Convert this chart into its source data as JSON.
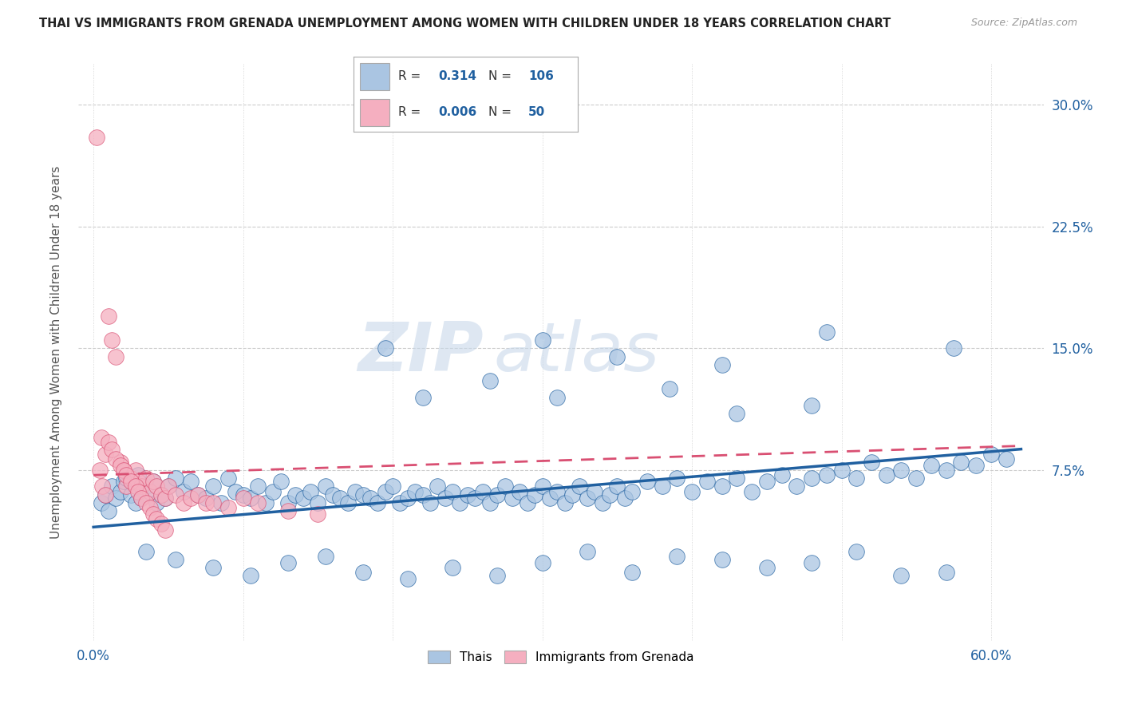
{
  "title": "THAI VS IMMIGRANTS FROM GRENADA UNEMPLOYMENT AMONG WOMEN WITH CHILDREN UNDER 18 YEARS CORRELATION CHART",
  "source": "Source: ZipAtlas.com",
  "xlabel_ticks_show": [
    "0.0%",
    "60.0%"
  ],
  "xlabel_vals_show": [
    0.0,
    0.6
  ],
  "xlabel_tick_positions": [
    0.0,
    0.1,
    0.2,
    0.3,
    0.4,
    0.5,
    0.6
  ],
  "ylabel": "Unemployment Among Women with Children Under 18 years",
  "ylabel_ticks": [
    "7.5%",
    "15.0%",
    "22.5%",
    "30.0%"
  ],
  "ylabel_vals": [
    0.075,
    0.15,
    0.225,
    0.3
  ],
  "ylim": [
    -0.03,
    0.325
  ],
  "xlim": [
    -0.01,
    0.635
  ],
  "legend_label1": "Thais",
  "legend_label2": "Immigrants from Grenada",
  "r1": "0.314",
  "n1": "106",
  "r2": "0.006",
  "n2": "50",
  "color_thai": "#aac5e2",
  "color_grenada": "#f5afc0",
  "color_thai_line": "#2060a0",
  "color_grenada_line": "#d94f72",
  "background_color": "#ffffff",
  "watermark_zip": "ZIP",
  "watermark_atlas": "atlas",
  "thai_x": [
    0.005,
    0.008,
    0.01,
    0.012,
    0.015,
    0.018,
    0.02,
    0.022,
    0.025,
    0.028,
    0.03,
    0.032,
    0.035,
    0.038,
    0.04,
    0.042,
    0.045,
    0.048,
    0.05,
    0.055,
    0.06,
    0.065,
    0.07,
    0.075,
    0.08,
    0.085,
    0.09,
    0.095,
    0.1,
    0.105,
    0.11,
    0.115,
    0.12,
    0.125,
    0.13,
    0.135,
    0.14,
    0.145,
    0.15,
    0.155,
    0.16,
    0.165,
    0.17,
    0.175,
    0.18,
    0.185,
    0.19,
    0.195,
    0.2,
    0.205,
    0.21,
    0.215,
    0.22,
    0.225,
    0.23,
    0.235,
    0.24,
    0.245,
    0.25,
    0.255,
    0.26,
    0.265,
    0.27,
    0.275,
    0.28,
    0.285,
    0.29,
    0.295,
    0.3,
    0.305,
    0.31,
    0.315,
    0.32,
    0.325,
    0.33,
    0.335,
    0.34,
    0.345,
    0.35,
    0.355,
    0.36,
    0.37,
    0.38,
    0.39,
    0.4,
    0.41,
    0.42,
    0.43,
    0.44,
    0.45,
    0.46,
    0.47,
    0.48,
    0.49,
    0.5,
    0.51,
    0.52,
    0.53,
    0.54,
    0.55,
    0.56,
    0.57,
    0.58,
    0.59,
    0.6,
    0.61
  ],
  "thai_y": [
    0.055,
    0.06,
    0.05,
    0.065,
    0.058,
    0.062,
    0.068,
    0.07,
    0.06,
    0.055,
    0.072,
    0.058,
    0.065,
    0.062,
    0.068,
    0.055,
    0.06,
    0.058,
    0.065,
    0.07,
    0.062,
    0.068,
    0.06,
    0.058,
    0.065,
    0.055,
    0.07,
    0.062,
    0.06,
    0.058,
    0.065,
    0.055,
    0.062,
    0.068,
    0.055,
    0.06,
    0.058,
    0.062,
    0.055,
    0.065,
    0.06,
    0.058,
    0.055,
    0.062,
    0.06,
    0.058,
    0.055,
    0.062,
    0.065,
    0.055,
    0.058,
    0.062,
    0.06,
    0.055,
    0.065,
    0.058,
    0.062,
    0.055,
    0.06,
    0.058,
    0.062,
    0.055,
    0.06,
    0.065,
    0.058,
    0.062,
    0.055,
    0.06,
    0.065,
    0.058,
    0.062,
    0.055,
    0.06,
    0.065,
    0.058,
    0.062,
    0.055,
    0.06,
    0.065,
    0.058,
    0.062,
    0.068,
    0.065,
    0.07,
    0.062,
    0.068,
    0.065,
    0.07,
    0.062,
    0.068,
    0.072,
    0.065,
    0.07,
    0.072,
    0.075,
    0.07,
    0.08,
    0.072,
    0.075,
    0.07,
    0.078,
    0.075,
    0.08,
    0.078,
    0.085,
    0.082
  ],
  "thai_y_high": [
    0.15,
    0.155,
    0.145,
    0.14,
    0.16,
    0.15,
    0.12,
    0.125,
    0.11,
    0.115,
    0.12,
    0.13
  ],
  "thai_x_high": [
    0.195,
    0.3,
    0.35,
    0.42,
    0.49,
    0.575,
    0.31,
    0.385,
    0.43,
    0.48,
    0.22,
    0.265
  ],
  "thai_y_low": [
    0.025,
    0.02,
    0.015,
    0.01,
    0.018,
    0.022,
    0.012,
    0.008,
    0.015,
    0.01,
    0.018,
    0.025,
    0.012,
    0.022,
    0.02,
    0.015,
    0.018,
    0.025,
    0.01,
    0.012
  ],
  "thai_x_low": [
    0.035,
    0.055,
    0.08,
    0.105,
    0.13,
    0.155,
    0.18,
    0.21,
    0.24,
    0.27,
    0.3,
    0.33,
    0.36,
    0.39,
    0.42,
    0.45,
    0.48,
    0.51,
    0.54,
    0.57
  ],
  "grenada_x": [
    0.002,
    0.004,
    0.006,
    0.008,
    0.01,
    0.012,
    0.015,
    0.018,
    0.02,
    0.022,
    0.025,
    0.028,
    0.03,
    0.032,
    0.035,
    0.038,
    0.04,
    0.042,
    0.045,
    0.048,
    0.05,
    0.055,
    0.06,
    0.065,
    0.07,
    0.075,
    0.08,
    0.09,
    0.1,
    0.11,
    0.13,
    0.15
  ],
  "grenada_y": [
    0.28,
    0.075,
    0.065,
    0.06,
    0.17,
    0.155,
    0.145,
    0.08,
    0.075,
    0.065,
    0.07,
    0.075,
    0.068,
    0.065,
    0.07,
    0.062,
    0.068,
    0.065,
    0.06,
    0.058,
    0.065,
    0.06,
    0.055,
    0.058,
    0.06,
    0.055,
    0.055,
    0.052,
    0.058,
    0.055,
    0.05,
    0.048
  ],
  "grenada_y_cluster": [
    0.095,
    0.085,
    0.092,
    0.088,
    0.082,
    0.078,
    0.075,
    0.072,
    0.068,
    0.065,
    0.062,
    0.058,
    0.055,
    0.052,
    0.048,
    0.045,
    0.042,
    0.038
  ],
  "grenada_x_cluster": [
    0.005,
    0.008,
    0.01,
    0.012,
    0.015,
    0.018,
    0.02,
    0.022,
    0.025,
    0.028,
    0.03,
    0.032,
    0.035,
    0.038,
    0.04,
    0.042,
    0.045,
    0.048
  ],
  "thai_line_x": [
    0.0,
    0.62
  ],
  "thai_line_y": [
    0.04,
    0.088
  ],
  "grenada_line_x": [
    0.0,
    0.62
  ],
  "grenada_line_y": [
    0.072,
    0.09
  ]
}
